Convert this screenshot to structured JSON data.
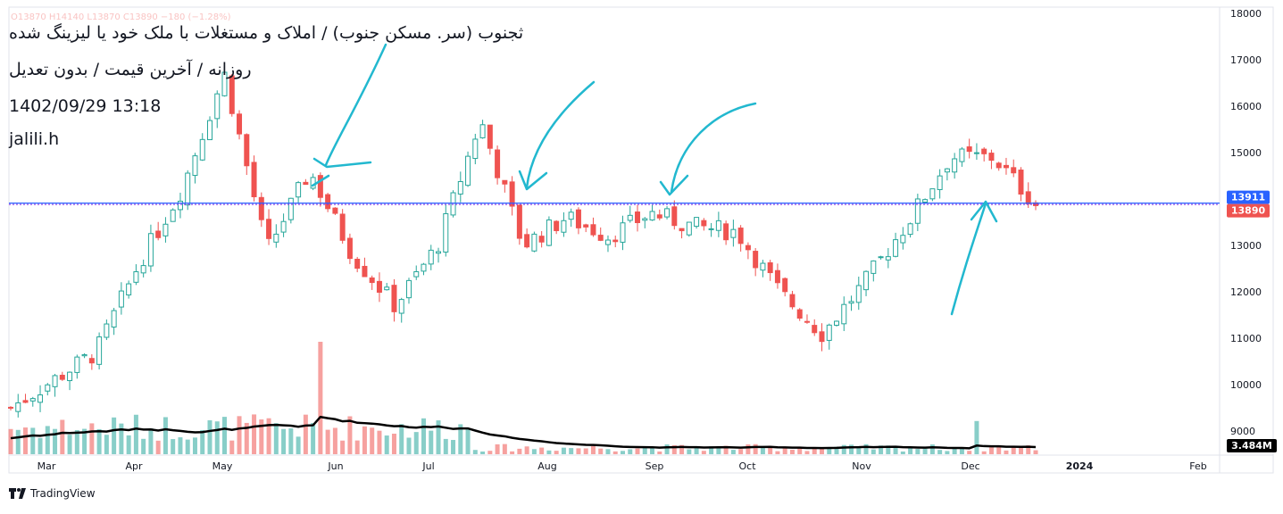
{
  "header": {
    "title": "ثجنوب (سر. مسکن جنوب) / املاک و مستغلات با ملک خود یا لیزینگ شده",
    "subtitle": "روزانه / آخرین قیمت / بدون تعدیل",
    "datetime": "1402/09/29 13:18",
    "author": "jalili.h",
    "ohlc": "O13870 H14140 L13870 C13890 −180 (−1.28%)"
  },
  "footer": {
    "brand": "TradingView"
  },
  "colors": {
    "up": "#26a69a",
    "down": "#ef5350",
    "annotation": "#22b8cf",
    "level": "#2962ff",
    "avg": "#000000"
  },
  "chart_data": {
    "type": "candlestick",
    "y_axis": {
      "ylim": [
        8500,
        18000
      ],
      "ticks": [
        9000,
        10000,
        11000,
        12000,
        13000,
        14000,
        15000,
        16000,
        17000,
        18000
      ],
      "position": "right"
    },
    "x_axis": {
      "tick_labels": [
        "Mar",
        "Apr",
        "May",
        "Jun",
        "Jul",
        "Aug",
        "Sep",
        "Oct",
        "Nov",
        "Dec",
        "2024",
        "Feb"
      ]
    },
    "price_labels": {
      "level": "13911",
      "last": "13890",
      "volume": "3.484M"
    },
    "horizontal_level": 13911,
    "price_path": [
      {
        "label": "Mar",
        "price": 9500
      },
      {
        "label": "Mar",
        "price": 10100
      },
      {
        "label": "Apr",
        "price": 10700
      },
      {
        "label": "Apr",
        "price": 12600
      },
      {
        "label": "May",
        "price": 14200
      },
      {
        "label": "May",
        "price": 16700
      },
      {
        "label": "May",
        "price": 12900
      },
      {
        "label": "May",
        "price": 14600
      },
      {
        "label": "Jun",
        "price": 12800
      },
      {
        "label": "Jun",
        "price": 11700
      },
      {
        "label": "Jul",
        "price": 13000
      },
      {
        "label": "Jul",
        "price": 15700
      },
      {
        "label": "Jul",
        "price": 13000
      },
      {
        "label": "Aug",
        "price": 13600
      },
      {
        "label": "Aug",
        "price": 13200
      },
      {
        "label": "Sep",
        "price": 13700
      },
      {
        "label": "Sep",
        "price": 13400
      },
      {
        "label": "Oct",
        "price": 13300
      },
      {
        "label": "Oct",
        "price": 12000
      },
      {
        "label": "Nov",
        "price": 11100
      },
      {
        "label": "Nov",
        "price": 12200
      },
      {
        "label": "Dec",
        "price": 13500
      },
      {
        "label": "Dec",
        "price": 14900
      },
      {
        "label": "Dec",
        "price": 14900
      },
      {
        "label": "Dec",
        "price": 13890
      }
    ],
    "series": [
      {
        "type": "volume",
        "max_millions": 10.5
      },
      {
        "type": "volume-average"
      }
    ]
  }
}
